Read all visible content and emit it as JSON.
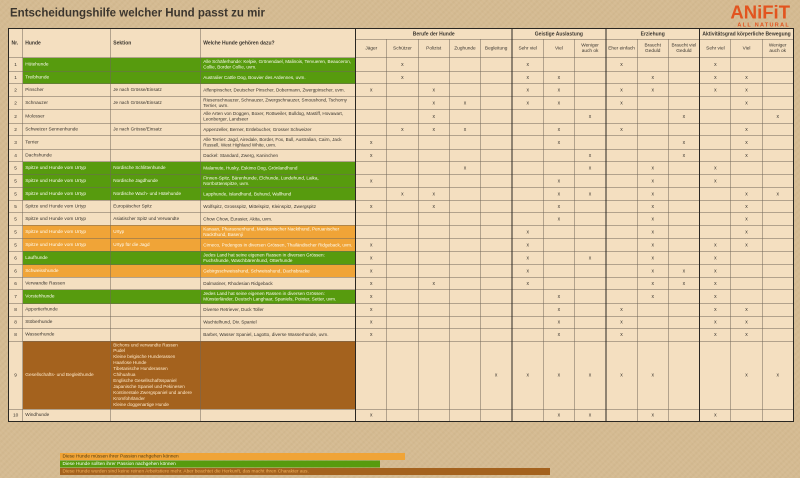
{
  "title": "Entscheidungshilfe welcher Hund passt zu mir",
  "logo": {
    "brand": "ANiFiT",
    "tagline": "ALL NATURAL"
  },
  "mark_glyph": "x",
  "table": {
    "left_headers": [
      "Nr.",
      "Hunde",
      "Sektion",
      "Welche Hunde gehören dazu?"
    ],
    "groups": [
      {
        "label": "Berufe der Hunde",
        "cols": [
          "Jäger",
          "Schützer",
          "Polizist",
          "Zughunde",
          "Begleitung"
        ]
      },
      {
        "label": "Geistige Auslastung",
        "cols": [
          "Sehr viel",
          "Viel",
          "Weniger auch ok"
        ]
      },
      {
        "label": "Erziehung",
        "cols": [
          "Eher einfach",
          "Braucht Geduld",
          "Braucht viel Geduld"
        ]
      },
      {
        "label": "Aktivitätsgrad körperliche Bewegung",
        "cols": [
          "Sehr viel",
          "Viel",
          "Weniger auch ok"
        ]
      }
    ],
    "rows": [
      {
        "nr": "1",
        "hunde": "Hütehunde",
        "sektion": "",
        "welche": "Alle Schäferhunde: Kelpie, Grönendael, Malinois, Tervueren, Beauceron, Collie, Border Collie, uvm.",
        "color": "green",
        "marks": [
          2,
          6,
          9,
          12
        ]
      },
      {
        "nr": "1",
        "hunde": "Treibhunde",
        "sektion": "",
        "welche": "Australier Cattle Dog, Bouvier des Ardennes, uvm.",
        "color": "green",
        "marks": [
          2,
          6,
          7,
          10,
          12,
          13
        ]
      },
      {
        "nr": "2",
        "hunde": "Pinscher",
        "sektion": "Je nach Grösse/Einsatz",
        "welche": "Affenpinscher, Deutscher Pinscher, Dobermann, Zwergpinscher, uvm.",
        "color": "plain",
        "marks": [
          1,
          3,
          6,
          7,
          9,
          10,
          12,
          13
        ]
      },
      {
        "nr": "2",
        "hunde": "Schnauzer",
        "sektion": "Je nach Grösse/Einsatz",
        "welche": "Riesenschnauzer, Schnauzer, Zwergschnauzer, Smoushond, Tschorny Terrier, uvm.",
        "color": "plain",
        "marks": [
          3,
          4,
          6,
          7,
          9,
          13
        ]
      },
      {
        "nr": "2",
        "hunde": "Molosser",
        "sektion": "",
        "welche": "Alle Arten von Doggen, Boxer, Rottweiler, Bulldog, Mastiff, Hovawart, Leonberger, Landseer",
        "color": "plain",
        "marks": [
          3,
          8,
          11,
          14
        ]
      },
      {
        "nr": "2",
        "hunde": "Schweizer Sennenhunde",
        "sektion": "Je nach Grösse/Einsatz",
        "welche": "Appenzeller, Berner, Entlebucher, Grosser Schweizer",
        "color": "plain",
        "marks": [
          2,
          3,
          4,
          7,
          9,
          13
        ]
      },
      {
        "nr": "3",
        "hunde": "Terrier",
        "sektion": "",
        "welche": "Alle Terrier: Jagd, Airedale, Border, Fox, Bull, Australian, Cairn, Jack Russell, West Highland White, uvm.",
        "color": "plain",
        "marks": [
          1,
          7,
          11,
          13
        ]
      },
      {
        "nr": "4",
        "hunde": "Dachshunde",
        "sektion": "",
        "welche": "Dackel: Standard, Zwerg, Kaninchen",
        "color": "plain",
        "marks": [
          1,
          8,
          11,
          13
        ]
      },
      {
        "nr": "5",
        "hunde": "Spitze und Hunde vom Urtyp",
        "sektion": "Nordische Schlittenhunde",
        "welche": "Malamute, Husky, Eskimo Dog, Grönlandhund",
        "color": "green",
        "marks": [
          4,
          8,
          10,
          12
        ]
      },
      {
        "nr": "5",
        "hunde": "Spitze und Hunde vom Urtyp",
        "sektion": "Nordische Jagdhunde",
        "welche": "Finnen-Spitz, Bärenhunde, Elchunde, Lundehund, Laika, Norrbottenspitze, uvm.",
        "color": "green",
        "marks": [
          1,
          7,
          10,
          12
        ]
      },
      {
        "nr": "5",
        "hunde": "Spitze und Hunde vom Urtyp",
        "sektion": "Nordische Wach- und Hütehunde",
        "welche": "Lapphunde, Islandhund, Buhund, Wallhund",
        "color": "green",
        "marks": [
          2,
          3,
          7,
          8,
          10,
          13,
          14
        ]
      },
      {
        "nr": "5",
        "hunde": "Spitze und Hunde vom Urtyp",
        "sektion": "Europäischer Spitz",
        "welche": "Wolfspitz, Grossspitz, Mittelspitz, Kleinspitz, Zwergspitz",
        "color": "plain",
        "marks": [
          1,
          3,
          7,
          10,
          13
        ]
      },
      {
        "nr": "5",
        "hunde": "Spitze und Hunde vom Urtyp",
        "sektion": "Asiatischer Spitz und Verwandte",
        "welche": "Chow Chow, Eurasier, Akita, uvm.",
        "color": "plain",
        "marks": [
          7,
          10,
          13
        ]
      },
      {
        "nr": "5",
        "hunde": "Spitze und Hunde vom Urtyp",
        "sektion": "Urtyp",
        "welche": "Kanaan, Pharaonenhund, Mexikanischer Nackthund, Peruanischer Nackthund, Basenji",
        "color": "orange",
        "marks": [
          6,
          10,
          13
        ]
      },
      {
        "nr": "5",
        "hunde": "Spitze und Hunde vom Urtyp",
        "sektion": "Urtyp für die Jagd",
        "welche": "Cirneco, Podengos in diversen Grössen, Thailändischer Ridgeback, uvm.",
        "color": "orange",
        "marks": [
          1,
          6,
          10,
          12,
          13
        ]
      },
      {
        "nr": "6",
        "hunde": "Laufhunde",
        "sektion": "",
        "welche": "Jedes Land hat seine eigenen Rassen in diversen Grössen: Fuchshunde, Waschbärenhund, Otterhunde",
        "color": "green",
        "marks": [
          1,
          6,
          8,
          10,
          12
        ]
      },
      {
        "nr": "6",
        "hunde": "Schweisshunde",
        "sektion": "",
        "welche": "Gebirgsschweisshund, Schweisshund, Dachsbracke",
        "color": "orange",
        "marks": [
          1,
          6,
          10,
          11,
          12
        ]
      },
      {
        "nr": "6",
        "hunde": "Verwandte Rassen",
        "sektion": "",
        "welche": "Dalmatiner, Rhodesian Ridgeback",
        "color": "plain",
        "marks": [
          1,
          3,
          6,
          10,
          11,
          12
        ]
      },
      {
        "nr": "7",
        "hunde": "Vorstehhunde",
        "sektion": "",
        "welche": "Jedes Land hat seine eigenen Rassen in diversen Grössen: Münsterländer, Deutsch Langhaar, Spaniels, Pointer, Setter, uvm.",
        "color": "green",
        "marks": [
          1,
          7,
          10,
          12
        ]
      },
      {
        "nr": "8",
        "hunde": "Apportierhunde",
        "sektion": "",
        "welche": "Diverse Retriever, Duck Toller",
        "color": "plain",
        "marks": [
          1,
          7,
          9,
          12,
          13
        ]
      },
      {
        "nr": "8",
        "hunde": "Stöberhunde",
        "sektion": "",
        "welche": "Wachtelhund, Div. Spaniel",
        "color": "plain",
        "marks": [
          1,
          7,
          9,
          12,
          13
        ]
      },
      {
        "nr": "8",
        "hunde": "Wasserhunde",
        "sektion": "",
        "welche": "Barbet, Wasser Spaniel, Lagotto, diverse Wasserhunde, uvm.",
        "color": "plain",
        "marks": [
          1,
          7,
          9,
          12,
          13
        ]
      },
      {
        "nr": "9",
        "hunde": "Gesellschafts- und Begleithunde",
        "sektion": "Bichons und verwandte Rassen\nPudel\nKleine belgische Hunderassen\nHaarlose Hunde\nTibetanische Hunderassen\nChihuahua\nEnglische Gesellschaftsspaniel\nJapanische Spaniel und Pekinesen\nKontinentale Zwergspaniel und andere\nKromfohrländer\nKleine doggenartige Hunde",
        "welche": "",
        "color": "brown",
        "marks": [
          5,
          6,
          7,
          8,
          9,
          10,
          13,
          14
        ]
      },
      {
        "nr": "10",
        "hunde": "Windhunde",
        "sektion": "",
        "welche": "",
        "color": "plain",
        "marks": [
          1,
          7,
          8,
          10,
          12
        ]
      }
    ]
  },
  "legend": [
    {
      "text": "Diese Hunde müssen ihrer Passion nachgehen können",
      "color": "orange"
    },
    {
      "text": "Diese Hunde sollten ihrer Passion nachgehen können",
      "color": "green"
    },
    {
      "text": "Diese Hunde wurden sind keine reinen Arbeitstiere mehr. Aber beachtet die Herkunft, das macht ihren Charakter aus.",
      "color": "brown"
    }
  ]
}
